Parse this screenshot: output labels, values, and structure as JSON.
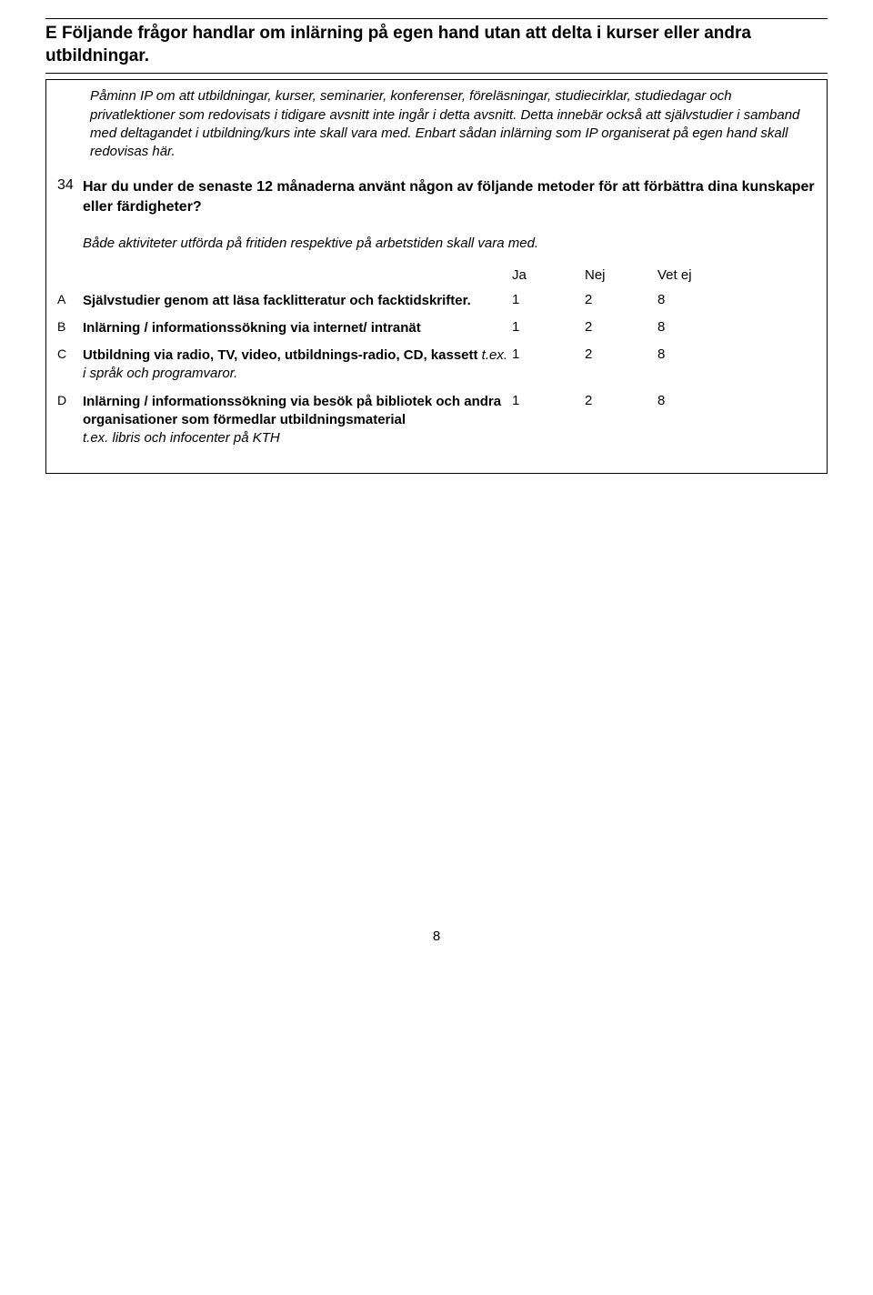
{
  "sectionE": {
    "heading": "E Följande frågor handlar om inlärning på egen hand utan att delta i kurser eller andra utbildningar."
  },
  "intro": "Påminn IP om att utbildningar, kurser, seminarier, konferenser, föreläsningar, studiecirklar, studiedagar och privatlektioner som redovisats i tidigare avsnitt inte ingår i detta avsnitt. Detta innebär också att självstudier i samband med deltagandet i utbildning/kurs inte skall vara med. Enbart sådan inlärning som IP organiserat på egen hand skall redovisas här.",
  "question": {
    "num": "34",
    "text": "Har du under de senaste 12 månaderna använt någon av följande metoder för att förbättra dina kunskaper eller färdigheter?",
    "sub": "Både aktiviteter utförda på fritiden respektive på arbetstiden skall vara med."
  },
  "tableHead": {
    "ja": "Ja",
    "nej": "Nej",
    "vetej": "Vet ej"
  },
  "rows": [
    {
      "letter": "A",
      "bold": "Självstudier genom att läsa facklitteratur och facktidskrifter.",
      "ital": "",
      "v1": "1",
      "v2": "2",
      "v3": "8"
    },
    {
      "letter": "B",
      "bold": "Inlärning / informationssökning via internet/ intranät",
      "ital": "",
      "v1": "1",
      "v2": "2",
      "v3": "8"
    },
    {
      "letter": "C",
      "bold": "Utbildning via radio, TV, video, utbildnings-radio, CD, kassett ",
      "ital": "t.ex. i språk och programvaror.",
      "v1": "1",
      "v2": "2",
      "v3": "8"
    },
    {
      "letter": "D",
      "bold": "Inlärning / informationssökning via besök på bibliotek och andra organisationer som förmedlar utbildningsmaterial",
      "ital": "t.ex. libris och infocenter på KTH",
      "v1": "1",
      "v2": "2",
      "v3": "8"
    }
  ],
  "pagenum": "8"
}
